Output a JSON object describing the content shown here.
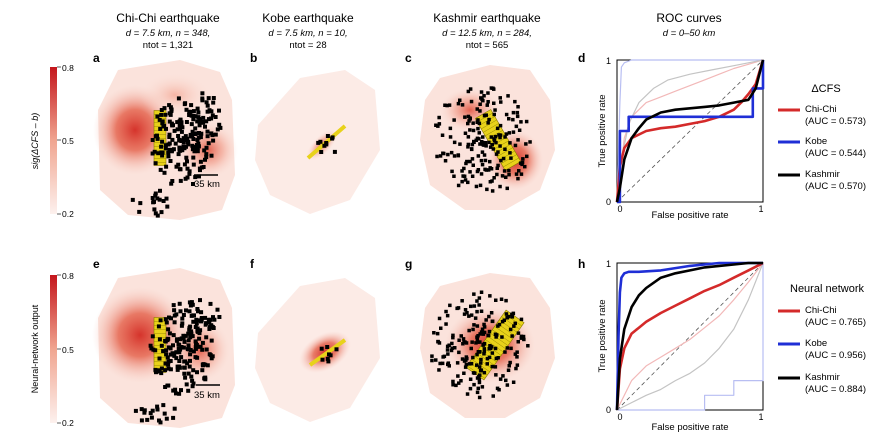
{
  "columns": [
    {
      "title": "Chi-Chi earthquake",
      "line1": "d = 7.5 km, n = 348,",
      "line2": "ntot = 1,321"
    },
    {
      "title": "Kobe earthquake",
      "line1": "d = 7.5 km, n = 10,",
      "line2": "ntot = 28"
    },
    {
      "title": "Kashmir earthquake",
      "line1": "d = 12.5 km, n = 284,",
      "line2": "ntot = 565"
    },
    {
      "title": "ROC curves",
      "line1": "d = 0–50 km",
      "line2": ""
    }
  ],
  "panel_letters": [
    "a",
    "b",
    "c",
    "d",
    "e",
    "f",
    "g",
    "h"
  ],
  "colorbars": [
    {
      "label": "sig(ΔCFS – b)",
      "ticks": [
        "0.8",
        "0.5",
        "0.2"
      ]
    },
    {
      "label": "Neural-network output",
      "ticks": [
        "0.8",
        "0.5",
        "0.2"
      ]
    }
  ],
  "scale_bar_label": "35 km",
  "colors": {
    "chi_chi": "#d42a2a",
    "kobe": "#1f2fd6",
    "kashmir": "#000000",
    "heat": "#d63025",
    "fault": "#e8d21a"
  },
  "chart_data": [
    {
      "type": "line",
      "panel": "d",
      "title": "ROC curves",
      "xlabel": "False positive rate",
      "ylabel": "True positive rate",
      "xlim": [
        0,
        1
      ],
      "ylim": [
        0,
        1
      ],
      "ticks": {
        "x": [
          "0",
          "1"
        ],
        "y": [
          "0",
          "1"
        ]
      },
      "legend_title": "ΔCFS",
      "series": [
        {
          "name": "Chi-Chi",
          "auc": "(AUC = 0.573)",
          "color": "#d42a2a",
          "x": [
            0,
            0.02,
            0.05,
            0.1,
            0.2,
            0.3,
            0.4,
            0.5,
            0.6,
            0.7,
            0.8,
            0.85,
            0.9,
            0.95,
            1
          ],
          "y": [
            0,
            0.25,
            0.38,
            0.45,
            0.5,
            0.52,
            0.53,
            0.55,
            0.57,
            0.6,
            0.65,
            0.7,
            0.76,
            0.83,
            1
          ]
        },
        {
          "name": "Kobe",
          "auc": "(AUC = 0.544)",
          "color": "#1f2fd6",
          "x": [
            0,
            0.02,
            0.02,
            0.08,
            0.08,
            0.6,
            0.6,
            0.75,
            0.75,
            0.93,
            0.93,
            1,
            1
          ],
          "y": [
            0,
            0,
            0.5,
            0.5,
            0.6,
            0.6,
            0.6,
            0.6,
            0.6,
            0.6,
            0.8,
            0.8,
            1
          ]
        },
        {
          "name": "Kashmir",
          "auc": "(AUC = 0.570)",
          "color": "#000000",
          "x": [
            0,
            0.02,
            0.05,
            0.1,
            0.15,
            0.2,
            0.3,
            0.4,
            0.5,
            0.6,
            0.7,
            0.8,
            0.9,
            0.95,
            1
          ],
          "y": [
            0,
            0.1,
            0.3,
            0.45,
            0.52,
            0.58,
            0.63,
            0.65,
            0.66,
            0.67,
            0.68,
            0.7,
            0.72,
            0.8,
            1
          ]
        }
      ],
      "faint_series": [
        {
          "color": "#f2b8b8",
          "x": [
            0,
            0.05,
            0.1,
            0.2,
            0.3,
            0.4,
            0.5,
            0.6,
            0.7,
            0.8,
            0.9,
            1
          ],
          "y": [
            0,
            0.45,
            0.6,
            0.7,
            0.74,
            0.78,
            0.82,
            0.86,
            0.9,
            0.94,
            0.97,
            1
          ]
        },
        {
          "color": "#b8bef2",
          "x": [
            0,
            0.02,
            0.03,
            0.05,
            0.1,
            0.3,
            0.6,
            1
          ],
          "y": [
            0,
            0.7,
            0.95,
            0.98,
            1,
            1,
            1,
            1
          ]
        },
        {
          "color": "#c4c4c4",
          "x": [
            0,
            0.03,
            0.08,
            0.15,
            0.25,
            0.35,
            0.5,
            0.65,
            0.8,
            0.9,
            1
          ],
          "y": [
            0,
            0.3,
            0.55,
            0.7,
            0.8,
            0.86,
            0.9,
            0.93,
            0.96,
            0.98,
            1
          ]
        }
      ]
    },
    {
      "type": "line",
      "panel": "h",
      "title": "",
      "xlabel": "False positive rate",
      "ylabel": "True positive rate",
      "xlim": [
        0,
        1
      ],
      "ylim": [
        0,
        1
      ],
      "ticks": {
        "x": [
          "0",
          "1"
        ],
        "y": [
          "0",
          "1"
        ]
      },
      "legend_title": "Neural network",
      "series": [
        {
          "name": "Chi-Chi",
          "auc": "(AUC = 0.765)",
          "color": "#d42a2a",
          "x": [
            0,
            0.02,
            0.05,
            0.1,
            0.15,
            0.2,
            0.3,
            0.4,
            0.5,
            0.6,
            0.7,
            0.8,
            0.9,
            1
          ],
          "y": [
            0,
            0.28,
            0.42,
            0.52,
            0.56,
            0.6,
            0.66,
            0.71,
            0.76,
            0.81,
            0.85,
            0.9,
            0.95,
            1
          ]
        },
        {
          "name": "Kobe",
          "auc": "(AUC = 0.956)",
          "color": "#1f2fd6",
          "x": [
            0,
            0.01,
            0.02,
            0.03,
            0.05,
            0.08,
            0.15,
            0.3,
            0.5,
            0.7,
            1
          ],
          "y": [
            0,
            0.5,
            0.8,
            0.9,
            0.93,
            0.94,
            0.94,
            0.95,
            0.98,
            1,
            1
          ]
        },
        {
          "name": "Kashmir",
          "auc": "(AUC = 0.884)",
          "color": "#000000",
          "x": [
            0,
            0.02,
            0.05,
            0.1,
            0.15,
            0.2,
            0.3,
            0.4,
            0.5,
            0.6,
            0.7,
            0.8,
            0.9,
            1
          ],
          "y": [
            0,
            0.35,
            0.55,
            0.7,
            0.78,
            0.83,
            0.9,
            0.93,
            0.95,
            0.97,
            0.98,
            0.99,
            1,
            1
          ]
        }
      ],
      "faint_series": [
        {
          "color": "#f2b8b8",
          "x": [
            0,
            0.1,
            0.2,
            0.3,
            0.4,
            0.5,
            0.6,
            0.7,
            0.8,
            0.9,
            1
          ],
          "y": [
            0,
            0.2,
            0.3,
            0.36,
            0.42,
            0.48,
            0.56,
            0.64,
            0.75,
            0.87,
            1
          ]
        },
        {
          "color": "#b8bef2",
          "x": [
            0,
            0.6,
            0.6,
            0.8,
            0.8,
            1,
            1
          ],
          "y": [
            0,
            0,
            0.1,
            0.1,
            0.2,
            0.2,
            1
          ]
        },
        {
          "color": "#c4c4c4",
          "x": [
            0,
            0.1,
            0.2,
            0.3,
            0.4,
            0.5,
            0.6,
            0.7,
            0.8,
            0.9,
            1
          ],
          "y": [
            0,
            0.05,
            0.1,
            0.14,
            0.2,
            0.25,
            0.32,
            0.42,
            0.55,
            0.75,
            1
          ]
        }
      ]
    }
  ]
}
